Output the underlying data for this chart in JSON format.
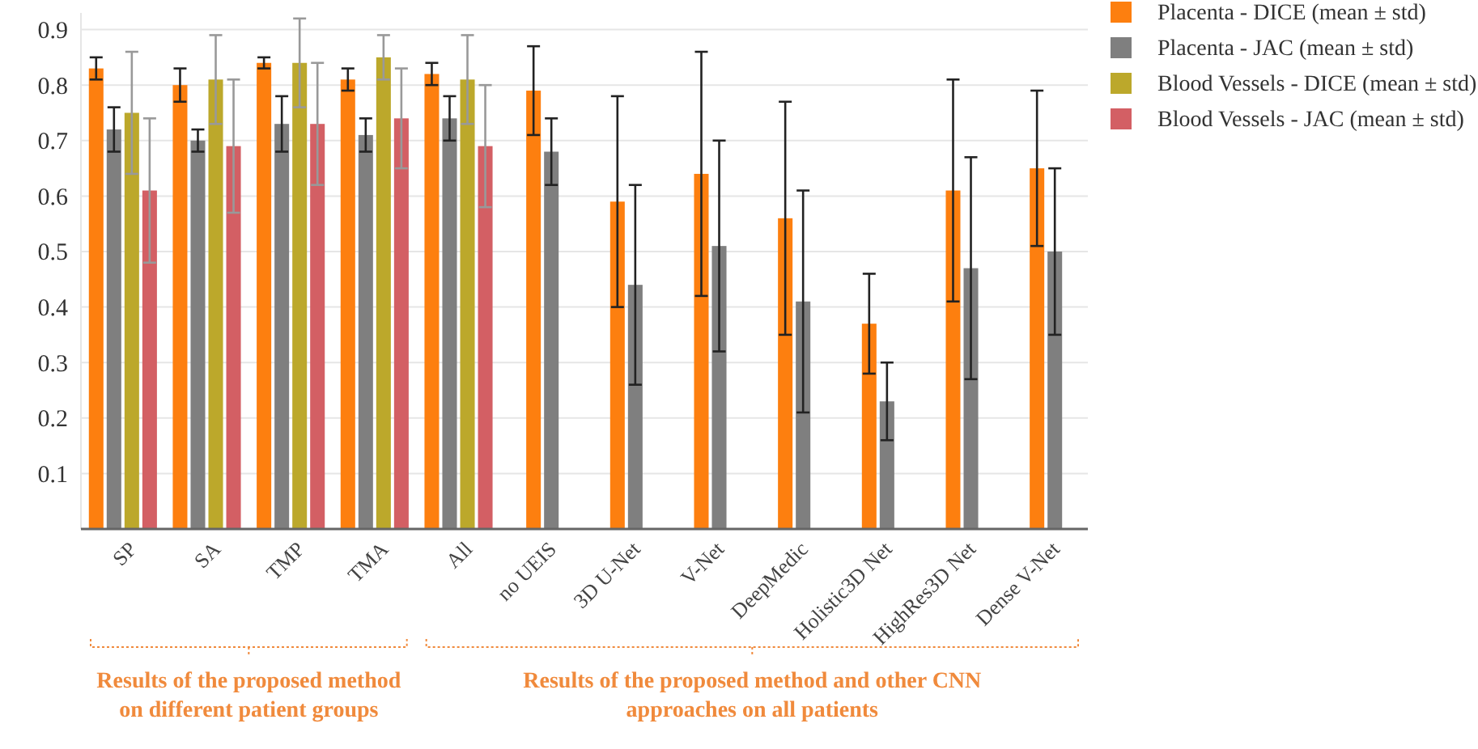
{
  "chart_data": {
    "type": "bar",
    "categories": [
      "SP",
      "SA",
      "TMP",
      "TMA",
      "All",
      "no UEIS",
      "3D U-Net",
      "V-Net",
      "DeepMedic",
      "Holistic3D Net",
      "HighRes3D Net",
      "Dense V-Net"
    ],
    "series": [
      {
        "name": "Placenta - DICE (mean ± std)",
        "color": "#fd7f0f",
        "values": [
          0.83,
          0.8,
          0.84,
          0.81,
          0.82,
          0.79,
          0.59,
          0.64,
          0.56,
          0.37,
          0.61,
          0.65
        ],
        "errors": [
          0.02,
          0.03,
          0.01,
          0.02,
          0.02,
          0.08,
          0.19,
          0.22,
          0.21,
          0.09,
          0.2,
          0.14
        ]
      },
      {
        "name": "Placenta - JAC (mean ± std)",
        "color": "#7f7f7f",
        "values": [
          0.72,
          0.7,
          0.73,
          0.71,
          0.74,
          0.68,
          0.44,
          0.51,
          0.41,
          0.23,
          0.47,
          0.5
        ],
        "errors": [
          0.04,
          0.02,
          0.05,
          0.03,
          0.04,
          0.06,
          0.18,
          0.19,
          0.2,
          0.07,
          0.2,
          0.15
        ]
      },
      {
        "name": "Blood Vessels - DICE (mean ± std)",
        "color": "#bca82b",
        "values": [
          0.75,
          0.81,
          0.84,
          0.85,
          0.81,
          null,
          null,
          null,
          null,
          null,
          null,
          null
        ],
        "errors": [
          0.11,
          0.08,
          0.08,
          0.04,
          0.08,
          null,
          null,
          null,
          null,
          null,
          null,
          null
        ]
      },
      {
        "name": "Blood Vessels - JAC (mean ± std)",
        "color": "#d35f64",
        "values": [
          0.61,
          0.69,
          0.73,
          0.74,
          0.69,
          null,
          null,
          null,
          null,
          null,
          null,
          null
        ],
        "errors": [
          0.13,
          0.12,
          0.11,
          0.09,
          0.11,
          null,
          null,
          null,
          null,
          null,
          null,
          null
        ]
      }
    ],
    "ylim": [
      0,
      0.93
    ],
    "yticks": [
      0.1,
      0.2,
      0.3,
      0.4,
      0.5,
      0.6,
      0.7,
      0.8,
      0.9
    ],
    "grid": "y",
    "legend": "top right",
    "annotations": [
      "Results of the proposed method on different patient groups",
      "Results of the proposed method and other CNN approaches on all patients"
    ]
  }
}
